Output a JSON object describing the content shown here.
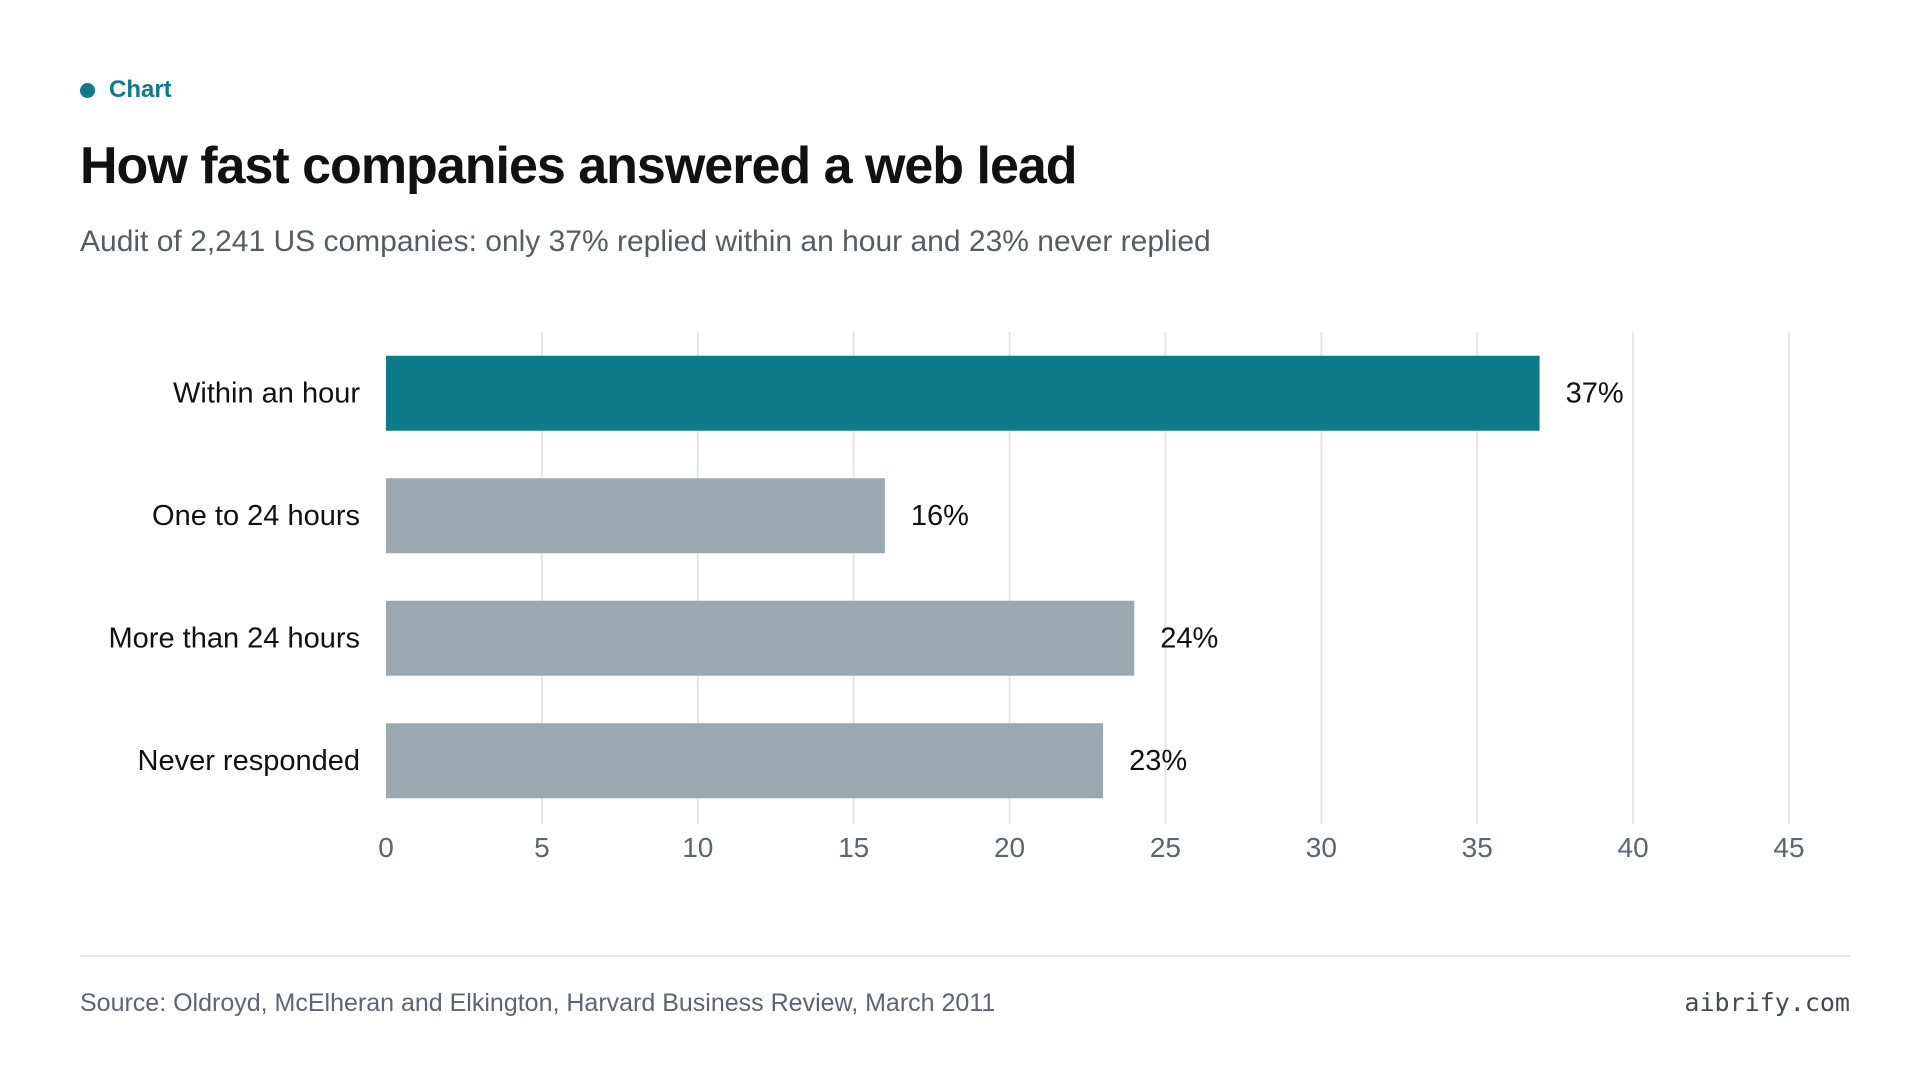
{
  "header": {
    "eyebrow": "Chart",
    "title": "How fast companies answered a web lead",
    "subtitle": "Audit of 2,241 US companies: only 37% replied within an hour and 23% never replied"
  },
  "footer": {
    "source": "Source: Oldroyd, McElheran and Elkington, Harvard Business Review, March 2011",
    "brand": "aibrify.com"
  },
  "colors": {
    "accent": "#0e7b8a",
    "bar_default": "#9aa8b1",
    "grid": "#e3e5e7",
    "tick_text": "#5b6670",
    "label_text": "#111111"
  },
  "chart_data": {
    "type": "bar",
    "orientation": "horizontal",
    "categories": [
      "Within an hour",
      "One to 24 hours",
      "More than 24 hours",
      "Never responded"
    ],
    "values": [
      37,
      16,
      24,
      23
    ],
    "value_labels": [
      "37%",
      "16%",
      "24%",
      "23%"
    ],
    "highlight_index": 0,
    "xlim": [
      0,
      45
    ],
    "xticks": [
      0,
      5,
      10,
      15,
      20,
      25,
      30,
      35,
      40,
      45
    ],
    "grid": true,
    "legend": "none",
    "xlabel": "",
    "ylabel": ""
  }
}
